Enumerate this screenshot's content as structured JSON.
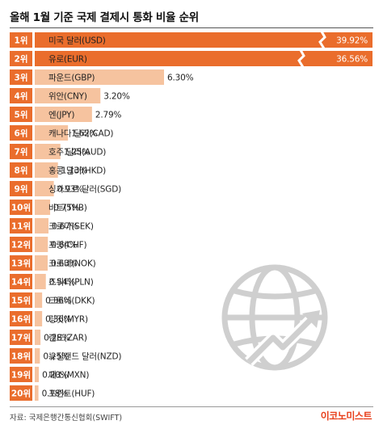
{
  "title": "올해 1월 기준 국제 결제시 통화 비율 순위",
  "source": "자료: 국제은행간통신협회(SWIFT)",
  "brand": "이코노미스트",
  "colors": {
    "rank_badge": "#ea6d2c",
    "bar_top": "#ea6d2c",
    "bar": "#f6c39f",
    "globe": "#d0d0d0"
  },
  "icons": [
    "globe-icon",
    "upward-arrow-icon"
  ],
  "chart_data": {
    "type": "bar",
    "orientation": "horizontal",
    "title": "올해 1월 기준 국제 결제시 통화 비율 순위",
    "ranks": [
      "1위",
      "2위",
      "3위",
      "4위",
      "5위",
      "6위",
      "7위",
      "8위",
      "9위",
      "10위",
      "11위",
      "12위",
      "13위",
      "14위",
      "15위",
      "16위",
      "17위",
      "18위",
      "19위",
      "20위"
    ],
    "categories": [
      "미국 달러(USD)",
      "유로(EUR)",
      "파운드(GBP)",
      "위안(CNY)",
      "엔(JPY)",
      "캐나다 달러(CAD)",
      "호주 달러(AUD)",
      "홍콩 달러(HKD)",
      "싱가포르 달러(SGD)",
      "바트(THB)",
      "크로나(SEK)",
      "프랑(CHF)",
      "크로네(NOK)",
      "즈워티(PLN)",
      "크로네(DKK)",
      "링깃(MYR)",
      "랜드(ZAR)",
      "뉴질랜드 달러(NZD)",
      "페소(MXN)",
      "포린트(HUF)"
    ],
    "values": [
      39.92,
      36.56,
      6.3,
      3.2,
      2.79,
      1.62,
      1.25,
      1.13,
      0.93,
      0.75,
      0.67,
      0.64,
      0.63,
      0.54,
      0.36,
      0.36,
      0.28,
      0.25,
      0.2,
      0.18
    ],
    "value_labels": [
      "39.92%",
      "36.56%",
      "6.30%",
      "3.20%",
      "2.79%",
      "1.62%",
      "1.25%",
      "1.13%",
      "0.93%",
      "0.75%",
      "0.67%",
      "0.64%",
      "0.63%",
      "0.54%",
      "0.36%",
      "0.36%",
      "0.28%",
      "0.25%",
      "0.20%",
      "0.18%"
    ],
    "axis_break_values": [
      39.92,
      36.56
    ],
    "unit": "%"
  }
}
